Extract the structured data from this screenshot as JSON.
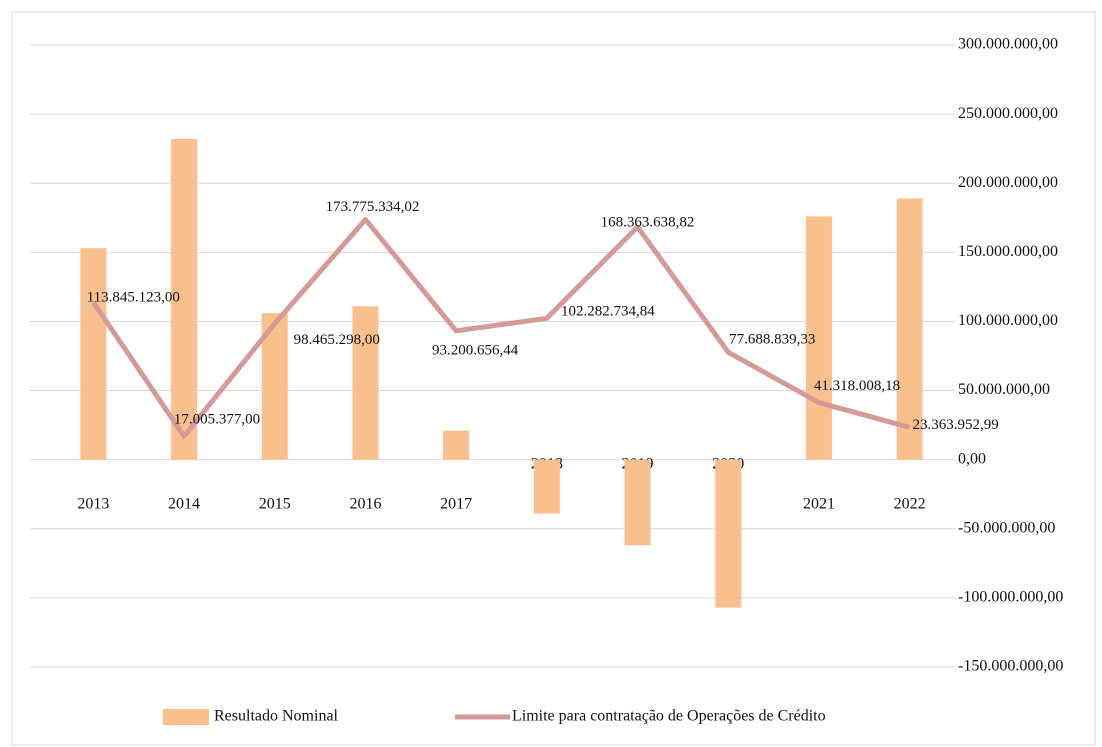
{
  "chart_data": {
    "type": "bar-line",
    "categories": [
      "2013",
      "2014",
      "2015",
      "2016",
      "2017",
      "2018",
      "2019",
      "2020",
      "2021",
      "2022"
    ],
    "series": [
      {
        "name": "Resultado Nominal",
        "type": "bar",
        "color": "#f9c08e",
        "axis": "y2",
        "values": [
          153000000,
          232000000,
          106000000,
          111000000,
          21000000,
          -39000000,
          -62000000,
          -107000000,
          176000000,
          189000000
        ]
      },
      {
        "name": "Limite para contratação de Operações de Crédito",
        "type": "line",
        "color": "#d49a98",
        "axis": "y2",
        "values": [
          113845123,
          17005377,
          98465298,
          173775334.02,
          93200656.44,
          102282734.84,
          168363638.82,
          77688839.33,
          41318008.18,
          23363952.99
        ],
        "value_labels": [
          "113.845.123,00",
          "17.005.377,00",
          "98.465.298,00",
          "173.775.334,02",
          "93.200.656,44",
          "102.282.734,84",
          "168.363.638,82",
          "77.688.839,33",
          "41.318.008,18",
          "23.363.952,99"
        ]
      }
    ],
    "y2lim": [
      -150000000,
      300000000
    ],
    "y2ticks": [
      {
        "value": 300000000,
        "label": "300.000.000,00"
      },
      {
        "value": 250000000,
        "label": "250.000.000,00"
      },
      {
        "value": 200000000,
        "label": "200.000.000,00"
      },
      {
        "value": 150000000,
        "label": "150.000.000,00"
      },
      {
        "value": 100000000,
        "label": "100.000.000,00"
      },
      {
        "value": 50000000,
        "label": "50.000.000,00"
      },
      {
        "value": 0,
        "label": "0,00"
      },
      {
        "value": -50000000,
        "label": "-50.000.000,00"
      },
      {
        "value": -100000000,
        "label": "-100.000.000,00"
      },
      {
        "value": -150000000,
        "label": "-150.000.000,00"
      }
    ],
    "grid": true,
    "legend": "bottom"
  }
}
